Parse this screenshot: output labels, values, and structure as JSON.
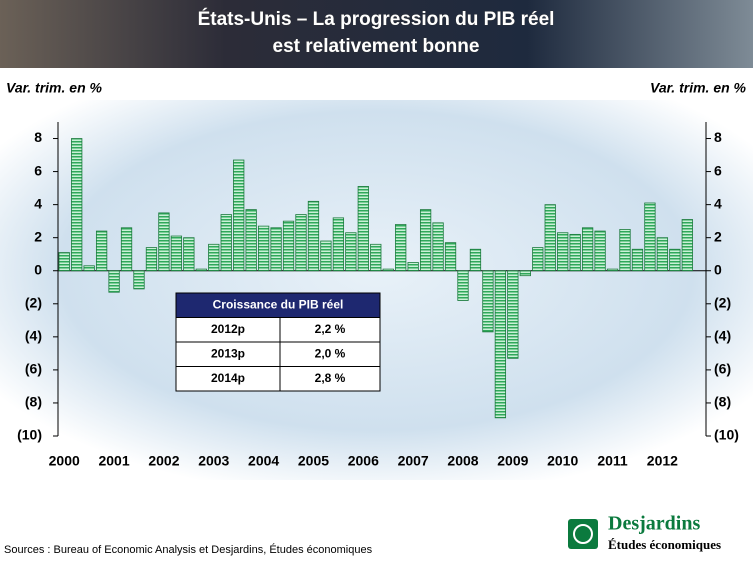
{
  "chart_data": {
    "type": "bar",
    "title": [
      "États-Unis – La progression du PIB réel",
      "est relativement bonne"
    ],
    "y_label_left": "Var. trim. en %",
    "y_label_right": "Var. trim. en %",
    "year_labels": [
      "2000",
      "2001",
      "2002",
      "2003",
      "2004",
      "2005",
      "2006",
      "2007",
      "2008",
      "2009",
      "2010",
      "2011",
      "2012"
    ],
    "values": [
      1.1,
      8.0,
      0.3,
      2.4,
      -1.3,
      2.6,
      -1.1,
      1.4,
      3.5,
      2.1,
      2.0,
      0.1,
      1.6,
      3.4,
      6.7,
      3.7,
      2.7,
      2.6,
      3.0,
      3.4,
      4.2,
      1.8,
      3.2,
      2.3,
      5.1,
      1.6,
      0.1,
      2.8,
      0.5,
      3.7,
      2.9,
      1.7,
      -1.8,
      1.3,
      -3.7,
      -8.9,
      -5.3,
      -0.3,
      1.4,
      4.0,
      2.3,
      2.2,
      2.6,
      2.4,
      0.1,
      2.5,
      1.3,
      4.1,
      2.0,
      1.3,
      3.1
    ],
    "color": "#2fa85a",
    "ylim": [
      -10,
      9
    ],
    "yticks": [
      8,
      6,
      4,
      2,
      0,
      {
        "value": -2,
        "label": "(2)"
      },
      {
        "value": -4,
        "label": "(4)"
      },
      {
        "value": -6,
        "label": "(6)"
      },
      {
        "value": -8,
        "label": "(8)"
      },
      {
        "value": -10,
        "label": "(10)"
      }
    ],
    "table": {
      "header": "Croissance du PIB réel",
      "rows": [
        [
          "2012p",
          "2,2 %"
        ],
        [
          "2013p",
          "2,0 %"
        ],
        [
          "2014p",
          "2,8 %"
        ]
      ]
    }
  },
  "source": "Sources : Bureau of Economic Analysis et Desjardins, Études économiques",
  "logo": {
    "name": "Desjardins",
    "subtitle": "Études économiques"
  }
}
